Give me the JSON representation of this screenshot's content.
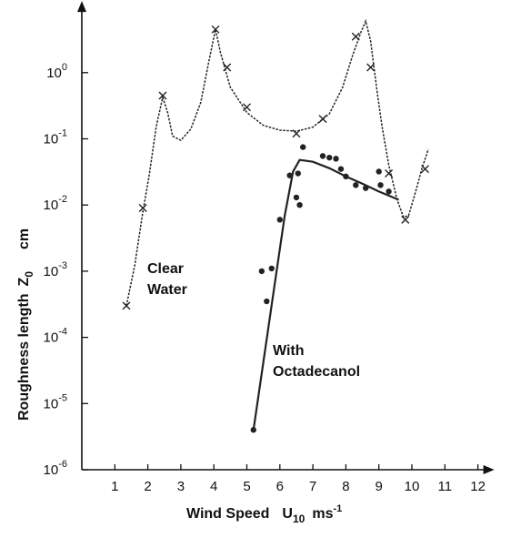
{
  "chart_data": {
    "type": "line",
    "xlabel": "Wind Speed",
    "xlabel_symbol": "U",
    "xlabel_sub": "10",
    "xlabel_unit": "ms",
    "xlabel_unit_sup": "-1",
    "ylabel": "Roughness length",
    "ylabel_symbol": "Z",
    "ylabel_sub": "0",
    "ylabel_unit": "cm",
    "xlim": [
      0,
      12
    ],
    "ylim": [
      1e-06,
      10
    ],
    "yscale": "log",
    "grid": false,
    "x_ticks": [
      "1",
      "2",
      "3",
      "4",
      "5",
      "6",
      "7",
      "8",
      "9",
      "10",
      "11",
      "12"
    ],
    "y_ticks": [
      {
        "base": "10",
        "exp": "-6"
      },
      {
        "base": "10",
        "exp": "-5"
      },
      {
        "base": "10",
        "exp": "-4"
      },
      {
        "base": "10",
        "exp": "-3"
      },
      {
        "base": "10",
        "exp": "-2"
      },
      {
        "base": "10",
        "exp": "-1"
      },
      {
        "base": "10",
        "exp": "0"
      }
    ],
    "series": [
      {
        "name": "Clear Water",
        "color": "#222222",
        "marker": "x",
        "curve": [
          [
            1.35,
            0.0003
          ],
          [
            1.6,
            0.0012
          ],
          [
            1.85,
            0.008
          ],
          [
            2.05,
            0.03
          ],
          [
            2.25,
            0.15
          ],
          [
            2.45,
            0.42
          ],
          [
            2.6,
            0.25
          ],
          [
            2.75,
            0.11
          ],
          [
            3.0,
            0.095
          ],
          [
            3.3,
            0.14
          ],
          [
            3.6,
            0.35
          ],
          [
            3.85,
            1.5
          ],
          [
            4.05,
            4.5
          ],
          [
            4.2,
            2.0
          ],
          [
            4.5,
            0.6
          ],
          [
            5.0,
            0.25
          ],
          [
            5.5,
            0.16
          ],
          [
            6.0,
            0.135
          ],
          [
            6.5,
            0.13
          ],
          [
            7.0,
            0.15
          ],
          [
            7.5,
            0.24
          ],
          [
            7.9,
            0.6
          ],
          [
            8.2,
            1.8
          ],
          [
            8.45,
            4.0
          ],
          [
            8.6,
            6.0
          ],
          [
            8.75,
            3.0
          ],
          [
            8.95,
            0.5
          ],
          [
            9.1,
            0.15
          ],
          [
            9.3,
            0.04
          ],
          [
            9.55,
            0.012
          ],
          [
            9.75,
            0.0065
          ],
          [
            9.9,
            0.007
          ],
          [
            10.1,
            0.015
          ],
          [
            10.3,
            0.035
          ],
          [
            10.5,
            0.07
          ]
        ],
        "markers": [
          [
            1.35,
            0.0003
          ],
          [
            1.85,
            0.009
          ],
          [
            2.45,
            0.45
          ],
          [
            4.05,
            4.5
          ],
          [
            4.4,
            1.2
          ],
          [
            5.0,
            0.3
          ],
          [
            6.5,
            0.12
          ],
          [
            7.3,
            0.2
          ],
          [
            8.3,
            3.5
          ],
          [
            8.75,
            1.2
          ],
          [
            9.3,
            0.03
          ],
          [
            9.8,
            0.006
          ],
          [
            10.4,
            0.035
          ]
        ]
      },
      {
        "name": "With Octadecanol",
        "color": "#222222",
        "marker": "dot",
        "curve": [
          [
            5.2,
            4e-06
          ],
          [
            5.9,
            0.001
          ],
          [
            6.15,
            0.007
          ],
          [
            6.4,
            0.032
          ],
          [
            6.6,
            0.048
          ],
          [
            7.0,
            0.045
          ],
          [
            7.5,
            0.036
          ],
          [
            8.0,
            0.027
          ],
          [
            8.5,
            0.021
          ],
          [
            9.0,
            0.016
          ],
          [
            9.6,
            0.012
          ]
        ],
        "points": [
          [
            5.2,
            4e-06
          ],
          [
            5.45,
            0.001
          ],
          [
            5.6,
            0.00035
          ],
          [
            5.75,
            0.0011
          ],
          [
            6.0,
            0.006
          ],
          [
            6.3,
            0.028
          ],
          [
            6.5,
            0.013
          ],
          [
            6.55,
            0.03
          ],
          [
            6.6,
            0.01
          ],
          [
            6.7,
            0.075
          ],
          [
            7.3,
            0.055
          ],
          [
            7.5,
            0.052
          ],
          [
            7.7,
            0.05
          ],
          [
            7.85,
            0.035
          ],
          [
            8.0,
            0.027
          ],
          [
            8.3,
            0.02
          ],
          [
            8.6,
            0.018
          ],
          [
            9.0,
            0.032
          ],
          [
            9.05,
            0.02
          ],
          [
            9.3,
            0.016
          ]
        ]
      }
    ],
    "annotations": [
      {
        "lines": [
          "Clear",
          "Water"
        ]
      },
      {
        "lines": [
          "With",
          "Octadecanol"
        ]
      }
    ]
  }
}
